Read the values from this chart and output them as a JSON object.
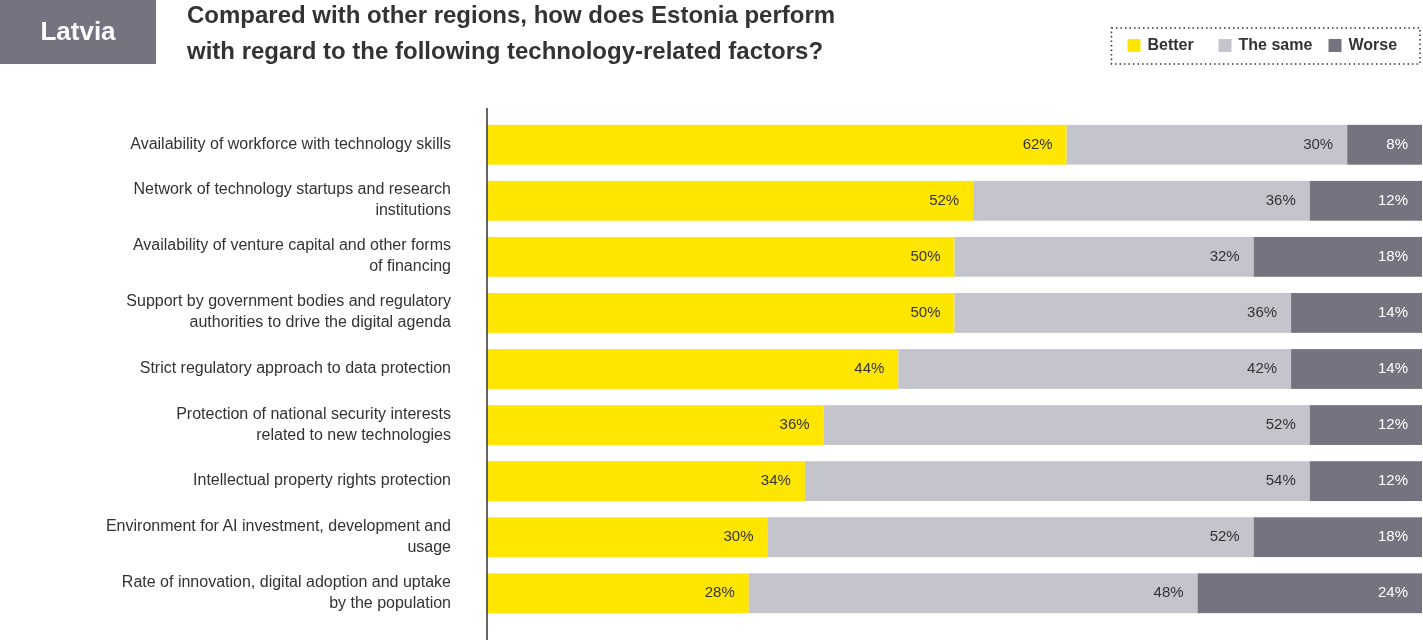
{
  "chart_data": {
    "type": "bar",
    "orientation": "horizontal",
    "stacked": true,
    "title": "Compared with other regions, how does Estonia perform with regard to the following technology-related factors?",
    "annotations": [
      "Latvia"
    ],
    "legend": "top right",
    "categories": [
      "Availability of workforce with technology skills",
      "Network of technology startups and research institutions",
      "Availability of venture capital and other forms of financing",
      "Support by government bodies and regulatory authorities to drive the digital agenda",
      "Strict regulatory approach to data protection",
      "Protection of national security interests related to new technologies",
      "Intellectual property rights protection",
      "Environment for AI investment, development and usage",
      "Rate of innovation, digital adoption and uptake by the population"
    ],
    "series": [
      {
        "name": "Better",
        "color": "#ffe600",
        "values": [
          62,
          52,
          50,
          50,
          44,
          36,
          34,
          30,
          28
        ],
        "value_labels": [
          "62%",
          "52%",
          "50%",
          "50%",
          "44%",
          "36%",
          "34%",
          "30%",
          "28%"
        ]
      },
      {
        "name": "The same",
        "color": "#c4c4cd",
        "values": [
          30,
          36,
          32,
          36,
          42,
          52,
          54,
          52,
          48
        ],
        "value_labels": [
          "30%",
          "36%",
          "32%",
          "36%",
          "42%",
          "52%",
          "54%",
          "52%",
          "48%"
        ]
      },
      {
        "name": "Worse",
        "color": "#747480",
        "values": [
          8,
          12,
          18,
          14,
          14,
          12,
          12,
          18,
          24
        ],
        "value_labels": [
          "8%",
          "12%",
          "18%",
          "14%",
          "14%",
          "12%",
          "12%",
          "18%",
          "24%"
        ]
      }
    ]
  }
}
